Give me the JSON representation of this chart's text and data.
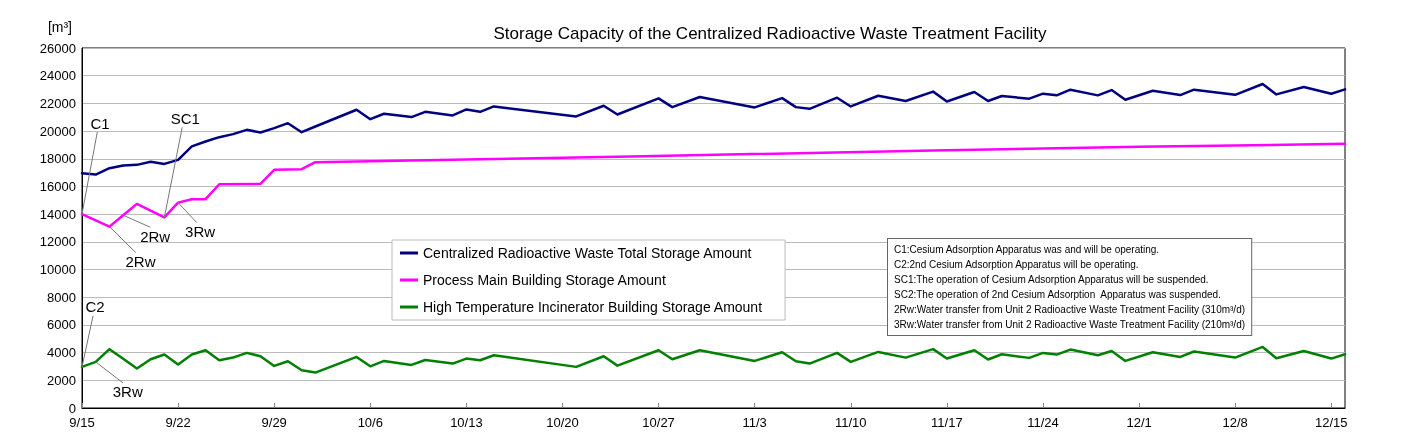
{
  "chart_data": {
    "type": "line",
    "title": "Storage Capacity of the Centralized Radioactive Waste Treatment Facility",
    "ylabel": "[m³]",
    "x": [
      "--09-15",
      "--09-16",
      "--09-17",
      "--09-18",
      "--09-19",
      "--09-20",
      "--09-21",
      "--09-22",
      "--09-23",
      "--09-24",
      "--09-25",
      "--09-26",
      "--09-27",
      "--09-28",
      "--09-29",
      "--09-30",
      "--10-01",
      "--10-02",
      "--10-05",
      "--10-06",
      "--10-07",
      "--10-09",
      "--10-10",
      "--10-12",
      "--10-13",
      "--10-14",
      "--10-15",
      "--10-21",
      "--10-23",
      "--10-24",
      "--10-27",
      "--10-28",
      "--10-30",
      "--11-03",
      "--11-05",
      "--11-06",
      "--11-07",
      "--11-09",
      "--11-10",
      "--11-12",
      "--11-14",
      "--11-16",
      "--11-17",
      "--11-19",
      "--11-20",
      "--11-21",
      "--11-23",
      "--11-24",
      "--11-25",
      "--11-26",
      "--11-28",
      "--11-29",
      "--11-30",
      "--12-02",
      "--12-04",
      "--12-05",
      "--12-08",
      "--12-10",
      "--12-11",
      "--12-13",
      "--12-15",
      "--12-16"
    ],
    "series": [
      {
        "name": "Centralized Radioactive Waste Total Storage Amount",
        "color": "#000080",
        "values": [
          16960,
          16860,
          17320,
          17510,
          17560,
          17780,
          17630,
          17920,
          18890,
          19250,
          19560,
          19780,
          20090,
          19900,
          20210,
          20570,
          19920,
          20330,
          21540,
          20860,
          21250,
          21010,
          21390,
          21130,
          21560,
          21390,
          21780,
          21060,
          21830,
          21200,
          22360,
          21730,
          22460,
          21710,
          22380,
          21730,
          21610,
          22410,
          21780,
          22550,
          22170,
          22850,
          22140,
          22820,
          22170,
          22530,
          22340,
          22700,
          22580,
          22990,
          22580,
          22960,
          22260,
          22910,
          22600,
          22990,
          22620,
          23400,
          22650,
          23180,
          22700,
          23010
        ]
      },
      {
        "name": "Process Main Building Storage Amount",
        "color": "#ff00ff",
        "x": [
          "--09-15",
          "--09-17",
          "--09-18",
          "--09-19",
          "--09-21",
          "--09-22",
          "--09-23",
          "--09-24",
          "--09-25",
          "--09-28",
          "--09-29",
          "--10-01",
          "--10-02",
          "--10-14",
          "--10-25",
          "--11-16",
          "--12-01",
          "--12-16"
        ],
        "values": [
          14010,
          13100,
          13920,
          14740,
          13770,
          14830,
          15080,
          15080,
          16160,
          16190,
          17200,
          17250,
          17750,
          17970,
          18160,
          18600,
          18860,
          19080
        ]
      },
      {
        "name": "High Temperature Incinerator Building Storage Amount",
        "color": "#008000",
        "values": [
          2970,
          3330,
          4250,
          3550,
          2850,
          3520,
          3860,
          3140,
          3860,
          4170,
          3450,
          3640,
          3980,
          3740,
          3040,
          3380,
          2730,
          2560,
          3690,
          3010,
          3400,
          3110,
          3470,
          3210,
          3570,
          3450,
          3810,
          2970,
          3740,
          3060,
          4170,
          3520,
          4170,
          3400,
          4030,
          3380,
          3210,
          3980,
          3330,
          4050,
          3640,
          4250,
          3570,
          4170,
          3500,
          3880,
          3620,
          3980,
          3860,
          4220,
          3810,
          4120,
          3400,
          4030,
          3690,
          4080,
          3640,
          4410,
          3590,
          4120,
          3570,
          3880
        ]
      }
    ],
    "xlim": [
      "--09-15",
      "--12-16"
    ],
    "xticks": [
      {
        "value": "--09-15",
        "label": "9/15"
      },
      {
        "value": "--09-22",
        "label": "9/22"
      },
      {
        "value": "--09-29",
        "label": "9/29"
      },
      {
        "value": "--10-06",
        "label": "10/6"
      },
      {
        "value": "--10-13",
        "label": "10/13"
      },
      {
        "value": "--10-20",
        "label": "10/20"
      },
      {
        "value": "--10-27",
        "label": "10/27"
      },
      {
        "value": "--11-03",
        "label": "11/3"
      },
      {
        "value": "--11-10",
        "label": "11/10"
      },
      {
        "value": "--11-17",
        "label": "11/17"
      },
      {
        "value": "--11-24",
        "label": "11/24"
      },
      {
        "value": "--12-01",
        "label": "12/1"
      },
      {
        "value": "--12-08",
        "label": "12/8"
      },
      {
        "value": "--12-15",
        "label": "12/15"
      }
    ],
    "ylim": [
      0,
      26000
    ],
    "yticks": [
      0,
      2000,
      4000,
      6000,
      8000,
      10000,
      12000,
      14000,
      16000,
      18000,
      20000,
      22000,
      24000,
      26000
    ],
    "grid": "y",
    "legend": "bottom",
    "marker": "none",
    "line_style": "solid",
    "annotations": [
      {
        "text": "C1",
        "x": "--09-15",
        "y": 14010
      },
      {
        "text": "SC1",
        "x": "--09-21",
        "y": 13770
      },
      {
        "text": "2Rw",
        "x": "--09-17",
        "y": 13100
      },
      {
        "text": "2Rw",
        "x": "--09-18",
        "y": 13920
      },
      {
        "text": "3Rw",
        "x": "--09-22",
        "y": 14830
      },
      {
        "text": "C2",
        "x": "--09-15",
        "y": 2970
      },
      {
        "text": "3Rw",
        "x": "--09-16",
        "y": 3330
      },
      "C1:Cesium Adsorption Apparatus was and will be operating.",
      "C2:2nd Cesium Adsorption Apparatus will be operating.",
      "SC1:The operation of Cesium Adsorption Apparatus will be suspended.",
      "SC2:The operation of 2nd Cesium Adsorption  Apparatus was suspended.",
      "2Rw:Water transfer from Unit 2 Radioactive Waste Treatment Facility (310m³/d)",
      "3Rw:Water transfer from Unit 2 Radioactive Waste Treatment Facility (210m³/d)"
    ]
  }
}
